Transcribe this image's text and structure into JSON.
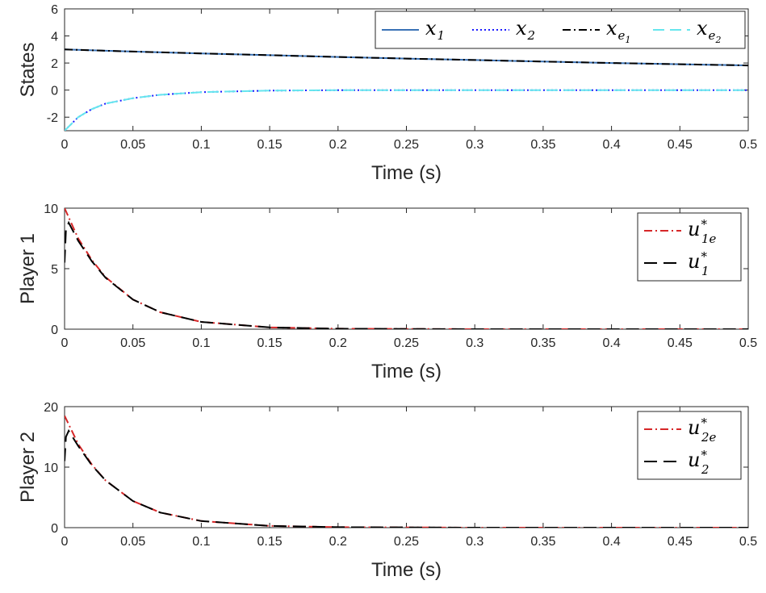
{
  "chart_data": [
    {
      "type": "line",
      "xlabel": "Time (s)",
      "ylabel": "States",
      "xlim": [
        0,
        0.5
      ],
      "ylim": [
        -3,
        6
      ],
      "xticks": [
        0,
        0.05,
        0.1,
        0.15,
        0.2,
        0.25,
        0.3,
        0.35,
        0.4,
        0.45,
        0.5
      ],
      "xtick_labels": [
        "0",
        "0.05",
        "0.1",
        "0.15",
        "0.2",
        "0.25",
        "0.3",
        "0.35",
        "0.4",
        "0.45",
        "0.5"
      ],
      "yticks": [
        -2,
        0,
        2,
        4,
        6
      ],
      "ytick_labels": [
        "-2",
        "0",
        "2",
        "4",
        "6"
      ],
      "grid": false,
      "legend": {
        "placement": "top-right",
        "orientation": "horizontal"
      },
      "series": [
        {
          "name": "x1",
          "label_base": "x",
          "label_sub": "1",
          "color": "#3a72b6",
          "dash": "solid",
          "x": [
            0,
            0.05,
            0.1,
            0.15,
            0.2,
            0.25,
            0.3,
            0.35,
            0.4,
            0.45,
            0.5
          ],
          "y": [
            3.0,
            2.85,
            2.71,
            2.58,
            2.45,
            2.33,
            2.22,
            2.11,
            2.0,
            1.91,
            1.82
          ]
        },
        {
          "name": "x2",
          "label_base": "x",
          "label_sub": "2",
          "color": "#1a1aff",
          "dash": "dotted",
          "x": [
            0,
            0.01,
            0.02,
            0.03,
            0.05,
            0.07,
            0.1,
            0.15,
            0.2,
            0.3,
            0.4,
            0.5
          ],
          "y": [
            -3.0,
            -2.0,
            -1.4,
            -1.0,
            -0.6,
            -0.35,
            -0.15,
            -0.04,
            -0.01,
            0.0,
            0.0,
            0.0
          ]
        },
        {
          "name": "xe1",
          "label_base": "x",
          "label_sub": "e",
          "label_subsub": "1",
          "color": "#000000",
          "dash": "dashdot",
          "x": [
            0,
            0.05,
            0.1,
            0.15,
            0.2,
            0.25,
            0.3,
            0.35,
            0.4,
            0.45,
            0.5
          ],
          "y": [
            3.0,
            2.85,
            2.71,
            2.58,
            2.45,
            2.33,
            2.22,
            2.11,
            2.0,
            1.91,
            1.82
          ]
        },
        {
          "name": "xe2",
          "label_base": "x",
          "label_sub": "e",
          "label_subsub": "2",
          "color": "#66e6ee",
          "dash": "dashed",
          "x": [
            0,
            0.01,
            0.02,
            0.03,
            0.05,
            0.07,
            0.1,
            0.15,
            0.2,
            0.3,
            0.4,
            0.5
          ],
          "y": [
            -3.0,
            -2.0,
            -1.4,
            -1.0,
            -0.6,
            -0.35,
            -0.15,
            -0.04,
            -0.01,
            0.0,
            0.0,
            0.0
          ]
        }
      ]
    },
    {
      "type": "line",
      "xlabel": "Time (s)",
      "ylabel": "Player 1",
      "xlim": [
        0,
        0.5
      ],
      "ylim": [
        0,
        10
      ],
      "xticks": [
        0,
        0.05,
        0.1,
        0.15,
        0.2,
        0.25,
        0.3,
        0.35,
        0.4,
        0.45,
        0.5
      ],
      "xtick_labels": [
        "0",
        "0.05",
        "0.1",
        "0.15",
        "0.2",
        "0.25",
        "0.3",
        "0.35",
        "0.4",
        "0.45",
        "0.5"
      ],
      "yticks": [
        0,
        5,
        10
      ],
      "ytick_labels": [
        "0",
        "5",
        "10"
      ],
      "grid": false,
      "legend": {
        "placement": "top-right",
        "orientation": "vertical"
      },
      "series": [
        {
          "name": "u1e*",
          "label_base": "u",
          "label_sub": "1e",
          "label_sup": "*",
          "color": "#d62728",
          "dash": "dashdot",
          "x": [
            0,
            0.01,
            0.02,
            0.03,
            0.05,
            0.07,
            0.1,
            0.15,
            0.2,
            0.3,
            0.4,
            0.5
          ],
          "y": [
            10.0,
            7.5,
            5.7,
            4.3,
            2.45,
            1.4,
            0.6,
            0.15,
            0.04,
            0.0,
            0.0,
            0.0
          ]
        },
        {
          "name": "u1*",
          "label_base": "u",
          "label_sub": "1",
          "label_sup": "*",
          "color": "#000000",
          "dash": "longdash",
          "x": [
            0,
            0.001,
            0.003,
            0.01,
            0.02,
            0.03,
            0.05,
            0.07,
            0.1,
            0.15,
            0.2,
            0.3,
            0.4,
            0.5
          ],
          "y": [
            5.5,
            8.2,
            8.8,
            7.3,
            5.6,
            4.25,
            2.45,
            1.4,
            0.6,
            0.15,
            0.04,
            0.0,
            0.0,
            0.0
          ]
        }
      ]
    },
    {
      "type": "line",
      "xlabel": "Time (s)",
      "ylabel": "Player 2",
      "xlim": [
        0,
        0.5
      ],
      "ylim": [
        0,
        20
      ],
      "xticks": [
        0,
        0.05,
        0.1,
        0.15,
        0.2,
        0.25,
        0.3,
        0.35,
        0.4,
        0.45,
        0.5
      ],
      "xtick_labels": [
        "0",
        "0.05",
        "0.1",
        "0.15",
        "0.2",
        "0.25",
        "0.3",
        "0.35",
        "0.4",
        "0.45",
        "0.5"
      ],
      "yticks": [
        0,
        10,
        20
      ],
      "ytick_labels": [
        "0",
        "10",
        "20"
      ],
      "grid": false,
      "legend": {
        "placement": "top-right",
        "orientation": "vertical"
      },
      "series": [
        {
          "name": "u2e*",
          "label_base": "u",
          "label_sub": "2e",
          "label_sup": "*",
          "color": "#d62728",
          "dash": "dashdot",
          "x": [
            0,
            0.01,
            0.02,
            0.03,
            0.05,
            0.07,
            0.1,
            0.15,
            0.2,
            0.3,
            0.4,
            0.5
          ],
          "y": [
            18.5,
            13.8,
            10.4,
            7.8,
            4.4,
            2.5,
            1.1,
            0.3,
            0.08,
            0.0,
            0.0,
            0.0
          ]
        },
        {
          "name": "u2*",
          "label_base": "u",
          "label_sub": "2",
          "label_sup": "*",
          "color": "#000000",
          "dash": "longdash",
          "x": [
            0,
            0.001,
            0.003,
            0.01,
            0.02,
            0.03,
            0.05,
            0.07,
            0.1,
            0.15,
            0.2,
            0.3,
            0.4,
            0.5
          ],
          "y": [
            11.0,
            15.0,
            16.0,
            13.5,
            10.3,
            7.8,
            4.4,
            2.5,
            1.1,
            0.3,
            0.08,
            0.0,
            0.0,
            0.0
          ]
        }
      ]
    }
  ]
}
